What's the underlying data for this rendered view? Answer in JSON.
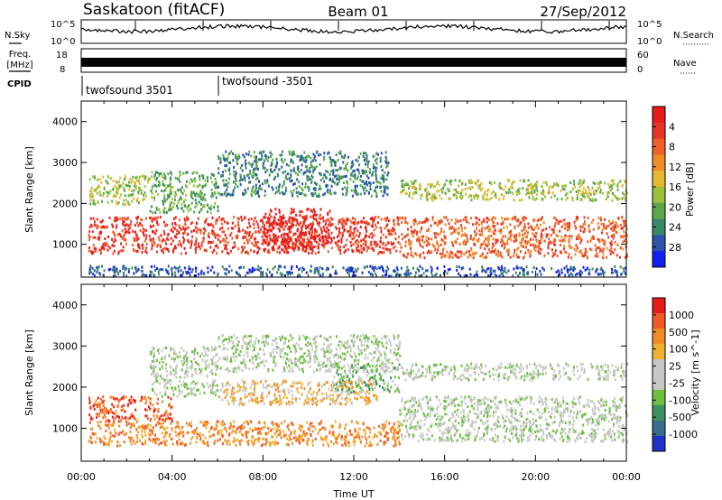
{
  "header": {
    "station": "Saskatoon (fitACF)",
    "beam": "Beam 01",
    "date": "27/Sep/2012"
  },
  "aux_panels": {
    "nsky": {
      "label": "N.Sky",
      "tick_top": "10^5",
      "tick_bottom": "10^0"
    },
    "nsearch": {
      "label": "N.Search",
      "tick_top": "10^5",
      "tick_bottom": "10^0"
    },
    "freq": {
      "label_line1": "Freq.",
      "label_line2": "[MHz]",
      "tick_top": "18",
      "tick_bottom": "8"
    },
    "nave": {
      "label": "Nave",
      "tick_top": "60",
      "tick_bottom": "0"
    },
    "cpid": {
      "label": "CPID",
      "programs": [
        {
          "name": "twofsound 3501",
          "start_hour": 0
        },
        {
          "name": "twofsound -3501",
          "start_hour": 6
        }
      ]
    }
  },
  "chart_data": [
    {
      "type": "heatmap",
      "title": "",
      "ylabel": "Slant Range [km]",
      "xlabel": "",
      "xlim_hours": [
        0,
        24
      ],
      "ylim": [
        200,
        4500
      ],
      "yticks": [
        1000,
        2000,
        3000,
        4000
      ],
      "colorbar": {
        "label": "Power [dB]",
        "ticks": [
          "4",
          "8",
          "12",
          "16",
          "20",
          "24",
          "28"
        ],
        "colors": [
          "#1020ee",
          "#2a55a8",
          "#3a8a68",
          "#5aa84a",
          "#9cc23c",
          "#e6b830",
          "#f08c28",
          "#f0602a",
          "#e83426",
          "#e81a1a"
        ]
      },
      "regions": [
        {
          "t": [
            0.3,
            14.0
          ],
          "r": [
            800,
            1700
          ],
          "c": 8
        },
        {
          "t": [
            14.0,
            24.0
          ],
          "r": [
            700,
            1700
          ],
          "c": 7
        },
        {
          "t": [
            8.0,
            11.0
          ],
          "r": [
            900,
            1900
          ],
          "c": 9
        },
        {
          "t": [
            3.0,
            6.0
          ],
          "r": [
            1800,
            2800
          ],
          "c": 3
        },
        {
          "t": [
            0.3,
            3.0
          ],
          "r": [
            2000,
            2700
          ],
          "c": 4
        },
        {
          "t": [
            6.0,
            13.5
          ],
          "r": [
            2200,
            3300
          ],
          "c": 2
        },
        {
          "t": [
            14.0,
            24.0
          ],
          "r": [
            2100,
            2600
          ],
          "c": 4
        },
        {
          "t": [
            0.3,
            24.0
          ],
          "r": [
            250,
            500
          ],
          "c": 1
        }
      ]
    },
    {
      "type": "heatmap",
      "title": "",
      "ylabel": "Slant Range [km]",
      "xlabel": "Time UT",
      "xlim_hours": [
        0,
        24
      ],
      "ylim": [
        200,
        4500
      ],
      "yticks": [
        1000,
        2000,
        3000,
        4000
      ],
      "xticks": [
        "00:00",
        "04:00",
        "08:00",
        "12:00",
        "16:00",
        "20:00",
        "00:00"
      ],
      "colorbar": {
        "label": "Velocity [m s^-1]",
        "ticks": [
          "1000",
          "500",
          "100",
          "25",
          "-25",
          "-100",
          "-500",
          "-1000"
        ],
        "colors": [
          "#2030c8",
          "#3a6e8e",
          "#3e9060",
          "#6cc040",
          "#c8c8c4",
          "#c8c8c4",
          "#f0b030",
          "#f08c28",
          "#f05a28",
          "#e81a1a"
        ]
      },
      "regions": [
        {
          "t": [
            14.0,
            24.0
          ],
          "r": [
            700,
            1800
          ],
          "c": 4
        },
        {
          "t": [
            0.3,
            4.0
          ],
          "r": [
            1200,
            1800
          ],
          "c": 8
        },
        {
          "t": [
            0.3,
            14.0
          ],
          "r": [
            600,
            1200
          ],
          "c": 7
        },
        {
          "t": [
            3.0,
            6.0
          ],
          "r": [
            1800,
            3000
          ],
          "c": 4
        },
        {
          "t": [
            6.0,
            13.0
          ],
          "r": [
            1600,
            2200
          ],
          "c": 6
        },
        {
          "t": [
            11.0,
            14.0
          ],
          "r": [
            1900,
            2600
          ],
          "c": 3
        },
        {
          "t": [
            6.0,
            14.0
          ],
          "r": [
            2400,
            3300
          ],
          "c": 4
        },
        {
          "t": [
            14.0,
            24.0
          ],
          "r": [
            2200,
            2600
          ],
          "c": 4
        }
      ]
    }
  ]
}
